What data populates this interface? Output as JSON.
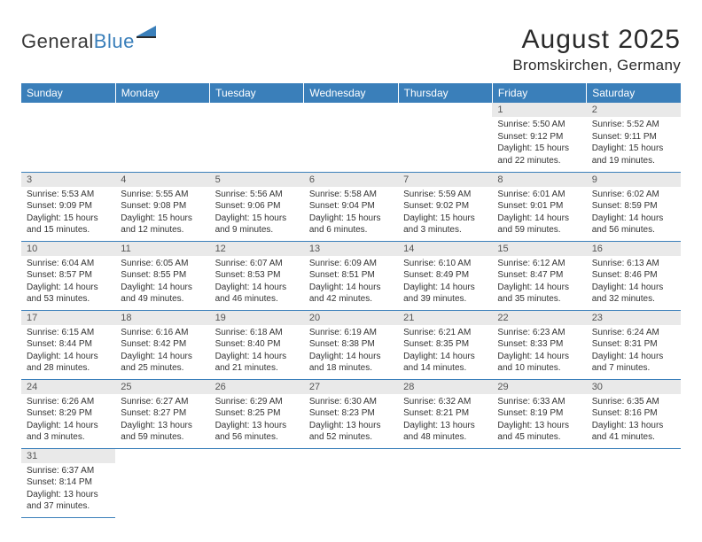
{
  "logo": {
    "part1": "General",
    "part2": "Blue"
  },
  "title": "August 2025",
  "location": "Bromskirchen, Germany",
  "colors": {
    "header_bg": "#3a7fba",
    "header_text": "#ffffff",
    "daynum_bg": "#e9e9e9",
    "border": "#3a7fba",
    "text": "#333333",
    "logo_gray": "#3a3a3a",
    "logo_blue": "#3a7fba"
  },
  "weekdays": [
    "Sunday",
    "Monday",
    "Tuesday",
    "Wednesday",
    "Thursday",
    "Friday",
    "Saturday"
  ],
  "weeks": [
    [
      null,
      null,
      null,
      null,
      null,
      {
        "n": "1",
        "sr": "Sunrise: 5:50 AM",
        "ss": "Sunset: 9:12 PM",
        "d1": "Daylight: 15 hours",
        "d2": "and 22 minutes."
      },
      {
        "n": "2",
        "sr": "Sunrise: 5:52 AM",
        "ss": "Sunset: 9:11 PM",
        "d1": "Daylight: 15 hours",
        "d2": "and 19 minutes."
      }
    ],
    [
      {
        "n": "3",
        "sr": "Sunrise: 5:53 AM",
        "ss": "Sunset: 9:09 PM",
        "d1": "Daylight: 15 hours",
        "d2": "and 15 minutes."
      },
      {
        "n": "4",
        "sr": "Sunrise: 5:55 AM",
        "ss": "Sunset: 9:08 PM",
        "d1": "Daylight: 15 hours",
        "d2": "and 12 minutes."
      },
      {
        "n": "5",
        "sr": "Sunrise: 5:56 AM",
        "ss": "Sunset: 9:06 PM",
        "d1": "Daylight: 15 hours",
        "d2": "and 9 minutes."
      },
      {
        "n": "6",
        "sr": "Sunrise: 5:58 AM",
        "ss": "Sunset: 9:04 PM",
        "d1": "Daylight: 15 hours",
        "d2": "and 6 minutes."
      },
      {
        "n": "7",
        "sr": "Sunrise: 5:59 AM",
        "ss": "Sunset: 9:02 PM",
        "d1": "Daylight: 15 hours",
        "d2": "and 3 minutes."
      },
      {
        "n": "8",
        "sr": "Sunrise: 6:01 AM",
        "ss": "Sunset: 9:01 PM",
        "d1": "Daylight: 14 hours",
        "d2": "and 59 minutes."
      },
      {
        "n": "9",
        "sr": "Sunrise: 6:02 AM",
        "ss": "Sunset: 8:59 PM",
        "d1": "Daylight: 14 hours",
        "d2": "and 56 minutes."
      }
    ],
    [
      {
        "n": "10",
        "sr": "Sunrise: 6:04 AM",
        "ss": "Sunset: 8:57 PM",
        "d1": "Daylight: 14 hours",
        "d2": "and 53 minutes."
      },
      {
        "n": "11",
        "sr": "Sunrise: 6:05 AM",
        "ss": "Sunset: 8:55 PM",
        "d1": "Daylight: 14 hours",
        "d2": "and 49 minutes."
      },
      {
        "n": "12",
        "sr": "Sunrise: 6:07 AM",
        "ss": "Sunset: 8:53 PM",
        "d1": "Daylight: 14 hours",
        "d2": "and 46 minutes."
      },
      {
        "n": "13",
        "sr": "Sunrise: 6:09 AM",
        "ss": "Sunset: 8:51 PM",
        "d1": "Daylight: 14 hours",
        "d2": "and 42 minutes."
      },
      {
        "n": "14",
        "sr": "Sunrise: 6:10 AM",
        "ss": "Sunset: 8:49 PM",
        "d1": "Daylight: 14 hours",
        "d2": "and 39 minutes."
      },
      {
        "n": "15",
        "sr": "Sunrise: 6:12 AM",
        "ss": "Sunset: 8:47 PM",
        "d1": "Daylight: 14 hours",
        "d2": "and 35 minutes."
      },
      {
        "n": "16",
        "sr": "Sunrise: 6:13 AM",
        "ss": "Sunset: 8:46 PM",
        "d1": "Daylight: 14 hours",
        "d2": "and 32 minutes."
      }
    ],
    [
      {
        "n": "17",
        "sr": "Sunrise: 6:15 AM",
        "ss": "Sunset: 8:44 PM",
        "d1": "Daylight: 14 hours",
        "d2": "and 28 minutes."
      },
      {
        "n": "18",
        "sr": "Sunrise: 6:16 AM",
        "ss": "Sunset: 8:42 PM",
        "d1": "Daylight: 14 hours",
        "d2": "and 25 minutes."
      },
      {
        "n": "19",
        "sr": "Sunrise: 6:18 AM",
        "ss": "Sunset: 8:40 PM",
        "d1": "Daylight: 14 hours",
        "d2": "and 21 minutes."
      },
      {
        "n": "20",
        "sr": "Sunrise: 6:19 AM",
        "ss": "Sunset: 8:38 PM",
        "d1": "Daylight: 14 hours",
        "d2": "and 18 minutes."
      },
      {
        "n": "21",
        "sr": "Sunrise: 6:21 AM",
        "ss": "Sunset: 8:35 PM",
        "d1": "Daylight: 14 hours",
        "d2": "and 14 minutes."
      },
      {
        "n": "22",
        "sr": "Sunrise: 6:23 AM",
        "ss": "Sunset: 8:33 PM",
        "d1": "Daylight: 14 hours",
        "d2": "and 10 minutes."
      },
      {
        "n": "23",
        "sr": "Sunrise: 6:24 AM",
        "ss": "Sunset: 8:31 PM",
        "d1": "Daylight: 14 hours",
        "d2": "and 7 minutes."
      }
    ],
    [
      {
        "n": "24",
        "sr": "Sunrise: 6:26 AM",
        "ss": "Sunset: 8:29 PM",
        "d1": "Daylight: 14 hours",
        "d2": "and 3 minutes."
      },
      {
        "n": "25",
        "sr": "Sunrise: 6:27 AM",
        "ss": "Sunset: 8:27 PM",
        "d1": "Daylight: 13 hours",
        "d2": "and 59 minutes."
      },
      {
        "n": "26",
        "sr": "Sunrise: 6:29 AM",
        "ss": "Sunset: 8:25 PM",
        "d1": "Daylight: 13 hours",
        "d2": "and 56 minutes."
      },
      {
        "n": "27",
        "sr": "Sunrise: 6:30 AM",
        "ss": "Sunset: 8:23 PM",
        "d1": "Daylight: 13 hours",
        "d2": "and 52 minutes."
      },
      {
        "n": "28",
        "sr": "Sunrise: 6:32 AM",
        "ss": "Sunset: 8:21 PM",
        "d1": "Daylight: 13 hours",
        "d2": "and 48 minutes."
      },
      {
        "n": "29",
        "sr": "Sunrise: 6:33 AM",
        "ss": "Sunset: 8:19 PM",
        "d1": "Daylight: 13 hours",
        "d2": "and 45 minutes."
      },
      {
        "n": "30",
        "sr": "Sunrise: 6:35 AM",
        "ss": "Sunset: 8:16 PM",
        "d1": "Daylight: 13 hours",
        "d2": "and 41 minutes."
      }
    ],
    [
      {
        "n": "31",
        "sr": "Sunrise: 6:37 AM",
        "ss": "Sunset: 8:14 PM",
        "d1": "Daylight: 13 hours",
        "d2": "and 37 minutes."
      },
      null,
      null,
      null,
      null,
      null,
      null
    ]
  ]
}
